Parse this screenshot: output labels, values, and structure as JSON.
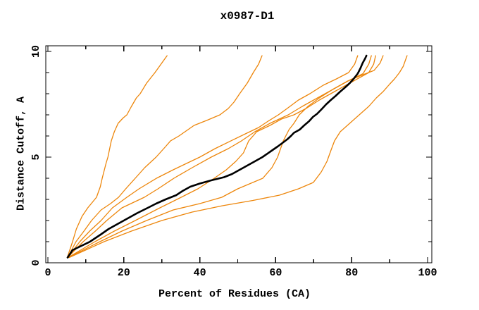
{
  "title": "x0987-D1",
  "chart_data": {
    "type": "line",
    "title": "x0987-D1",
    "xlabel": "Percent of Residues (CA)",
    "ylabel": "Distance Cutoff, A",
    "xlim": [
      0,
      101
    ],
    "ylim": [
      0,
      10.3
    ],
    "grid": false,
    "legend": "none",
    "x_major_ticks": [
      0,
      20,
      40,
      60,
      80,
      100
    ],
    "x_major_tick_labels": [
      "0",
      "20",
      "40",
      "60",
      "80",
      "100"
    ],
    "x_minor_ticks": [
      10,
      30,
      50,
      70,
      90
    ],
    "y_major_ticks": [
      0,
      5,
      10
    ],
    "y_major_tick_labels": [
      "0",
      "5",
      "10"
    ],
    "y_minor_ticks": [
      1,
      2,
      3,
      4,
      6,
      7,
      8,
      9
    ],
    "colors": {
      "highlight": "#000000",
      "model": "#ED860B",
      "frame": "#000000"
    },
    "series": [
      {
        "name": "orange-model-1",
        "color": "#ED860B",
        "width": 1.3,
        "points": [
          [
            5.1,
            0.25
          ],
          [
            6.5,
            1
          ],
          [
            7.5,
            1.6
          ],
          [
            9,
            2.2
          ],
          [
            10.5,
            2.6
          ],
          [
            12.8,
            3.1
          ],
          [
            13.8,
            3.6
          ],
          [
            14.3,
            4
          ],
          [
            15.3,
            4.7
          ],
          [
            15.8,
            5
          ],
          [
            16.7,
            5.77
          ],
          [
            17.5,
            6.2
          ],
          [
            18.5,
            6.6
          ],
          [
            19.8,
            6.85
          ],
          [
            20.8,
            7
          ],
          [
            22,
            7.4
          ],
          [
            23.3,
            7.8
          ],
          [
            24.3,
            8
          ],
          [
            26,
            8.5
          ],
          [
            28.2,
            9
          ],
          [
            29.8,
            9.4
          ],
          [
            31.4,
            9.8
          ]
        ]
      },
      {
        "name": "orange-model-2",
        "color": "#ED860B",
        "width": 1.3,
        "points": [
          [
            5.2,
            0.25
          ],
          [
            7.4,
            1
          ],
          [
            9.5,
            1.5
          ],
          [
            11.5,
            2
          ],
          [
            14,
            2.5
          ],
          [
            16.5,
            2.8
          ],
          [
            18.6,
            3.1
          ],
          [
            20.5,
            3.5
          ],
          [
            23,
            4
          ],
          [
            25.5,
            4.5
          ],
          [
            28.5,
            5
          ],
          [
            31,
            5.5
          ],
          [
            32.3,
            5.77
          ],
          [
            34.5,
            6
          ],
          [
            38.5,
            6.5
          ],
          [
            42,
            6.75
          ],
          [
            45.3,
            7
          ],
          [
            47.5,
            7.3
          ],
          [
            49,
            7.6
          ],
          [
            50.5,
            8
          ],
          [
            52.5,
            8.5
          ],
          [
            54.1,
            9
          ],
          [
            55.5,
            9.4
          ],
          [
            56.4,
            9.8
          ]
        ]
      },
      {
        "name": "orange-model-3",
        "color": "#ED860B",
        "width": 1.3,
        "points": [
          [
            5.2,
            0.25
          ],
          [
            8.4,
            1
          ],
          [
            11,
            1.5
          ],
          [
            14,
            2
          ],
          [
            17,
            2.6
          ],
          [
            20.8,
            3.1
          ],
          [
            24,
            3.5
          ],
          [
            28.6,
            4
          ],
          [
            33,
            4.4
          ],
          [
            36.5,
            4.7
          ],
          [
            40,
            5
          ],
          [
            44,
            5.4
          ],
          [
            48.2,
            5.77
          ],
          [
            52,
            6.1
          ],
          [
            55.5,
            6.4
          ],
          [
            58,
            6.7
          ],
          [
            60.7,
            7
          ],
          [
            63,
            7.3
          ],
          [
            66,
            7.7
          ],
          [
            69,
            8
          ],
          [
            72.5,
            8.4
          ],
          [
            76,
            8.7
          ],
          [
            79.2,
            9
          ],
          [
            80.8,
            9.4
          ],
          [
            81.6,
            9.8
          ]
        ]
      },
      {
        "name": "orange-model-4",
        "color": "#ED860B",
        "width": 1.3,
        "points": [
          [
            5.2,
            0.25
          ],
          [
            9.3,
            1
          ],
          [
            12.5,
            1.5
          ],
          [
            15.5,
            2
          ],
          [
            19.5,
            2.6
          ],
          [
            25.4,
            3.1
          ],
          [
            29,
            3.5
          ],
          [
            33.2,
            4
          ],
          [
            38,
            4.5
          ],
          [
            43,
            5
          ],
          [
            47.5,
            5.4
          ],
          [
            51,
            5.77
          ],
          [
            54.5,
            6.2
          ],
          [
            58.5,
            6.6
          ],
          [
            63.3,
            7
          ],
          [
            67,
            7.4
          ],
          [
            71,
            7.8
          ],
          [
            75,
            8.2
          ],
          [
            79,
            8.6
          ],
          [
            83,
            8.95
          ],
          [
            84.5,
            9.4
          ],
          [
            85.2,
            9.8
          ]
        ]
      },
      {
        "name": "orange-model-5",
        "color": "#ED860B",
        "width": 1.3,
        "points": [
          [
            5.3,
            0.25
          ],
          [
            12.4,
            1
          ],
          [
            17.5,
            1.5
          ],
          [
            23,
            2
          ],
          [
            29.5,
            2.6
          ],
          [
            35.1,
            3.1
          ],
          [
            39.5,
            3.5
          ],
          [
            43.8,
            4
          ],
          [
            47,
            4.4
          ],
          [
            49.5,
            4.8
          ],
          [
            51.5,
            5.2
          ],
          [
            52.9,
            5.77
          ],
          [
            55,
            6.2
          ],
          [
            58.5,
            6.5
          ],
          [
            61.5,
            6.8
          ],
          [
            64.8,
            7
          ],
          [
            68,
            7.3
          ],
          [
            71.5,
            7.7
          ],
          [
            75.5,
            8.1
          ],
          [
            79.5,
            8.5
          ],
          [
            82.5,
            8.8
          ],
          [
            84.5,
            9
          ],
          [
            85.8,
            9.4
          ],
          [
            86.3,
            9.8
          ]
        ]
      },
      {
        "name": "orange-model-6",
        "color": "#ED860B",
        "width": 1.3,
        "points": [
          [
            5.4,
            0.25
          ],
          [
            13.7,
            1
          ],
          [
            19.5,
            1.5
          ],
          [
            26,
            2
          ],
          [
            33,
            2.5
          ],
          [
            40,
            2.8
          ],
          [
            45.8,
            3.1
          ],
          [
            50,
            3.5
          ],
          [
            56.6,
            4
          ],
          [
            59,
            4.5
          ],
          [
            60.5,
            5
          ],
          [
            62,
            5.77
          ],
          [
            63.5,
            6.3
          ],
          [
            64.8,
            6.6
          ],
          [
            66.2,
            7
          ],
          [
            68.5,
            7.4
          ],
          [
            71.5,
            7.8
          ],
          [
            75,
            8.2
          ],
          [
            79,
            8.6
          ],
          [
            83,
            8.9
          ],
          [
            85.9,
            9.1
          ],
          [
            87.5,
            9.45
          ],
          [
            88.3,
            9.8
          ]
        ]
      },
      {
        "name": "orange-model-7",
        "color": "#ED860B",
        "width": 1.3,
        "points": [
          [
            5.6,
            0.25
          ],
          [
            14.8,
            1
          ],
          [
            22,
            1.5
          ],
          [
            30,
            2
          ],
          [
            38,
            2.4
          ],
          [
            46,
            2.7
          ],
          [
            54,
            2.95
          ],
          [
            61,
            3.2
          ],
          [
            66,
            3.5
          ],
          [
            69.9,
            3.8
          ],
          [
            72,
            4.3
          ],
          [
            73.5,
            4.8
          ],
          [
            74.5,
            5.3
          ],
          [
            75.5,
            5.77
          ],
          [
            77,
            6.2
          ],
          [
            79.5,
            6.6
          ],
          [
            82,
            7
          ],
          [
            84.5,
            7.4
          ],
          [
            86.5,
            7.8
          ],
          [
            88.3,
            8.1
          ],
          [
            90,
            8.45
          ],
          [
            91.3,
            8.7
          ],
          [
            92.6,
            9
          ],
          [
            93.6,
            9.3
          ],
          [
            94.2,
            9.6
          ],
          [
            94.6,
            9.8
          ]
        ]
      },
      {
        "name": "highlighted-model",
        "color": "#000000",
        "width": 2.6,
        "points": [
          [
            5.2,
            0.25
          ],
          [
            6.5,
            0.6
          ],
          [
            11.1,
            1
          ],
          [
            14,
            1.35
          ],
          [
            16,
            1.6
          ],
          [
            18.5,
            1.85
          ],
          [
            21,
            2.1
          ],
          [
            23.5,
            2.35
          ],
          [
            26.3,
            2.6
          ],
          [
            28.5,
            2.8
          ],
          [
            31,
            3
          ],
          [
            33.8,
            3.2
          ],
          [
            35.5,
            3.4
          ],
          [
            37.5,
            3.6
          ],
          [
            40,
            3.75
          ],
          [
            43,
            3.9
          ],
          [
            46.4,
            4.05
          ],
          [
            48.5,
            4.2
          ],
          [
            50.5,
            4.4
          ],
          [
            52.5,
            4.6
          ],
          [
            54.5,
            4.8
          ],
          [
            56.5,
            5
          ],
          [
            58.5,
            5.25
          ],
          [
            60.5,
            5.5
          ],
          [
            62,
            5.7
          ],
          [
            63.1,
            5.85
          ],
          [
            64,
            6
          ],
          [
            64.8,
            6.15
          ],
          [
            66.3,
            6.3
          ],
          [
            67.5,
            6.5
          ],
          [
            68.8,
            6.7
          ],
          [
            69.8,
            6.9
          ],
          [
            70.9,
            7.05
          ],
          [
            72,
            7.25
          ],
          [
            73.3,
            7.5
          ],
          [
            74.5,
            7.7
          ],
          [
            75.8,
            7.9
          ],
          [
            77,
            8.1
          ],
          [
            78.3,
            8.3
          ],
          [
            79.5,
            8.5
          ],
          [
            80.5,
            8.7
          ],
          [
            81.6,
            8.95
          ],
          [
            82.3,
            9.2
          ],
          [
            82.9,
            9.45
          ],
          [
            83.5,
            9.65
          ],
          [
            83.9,
            9.8
          ]
        ]
      }
    ]
  }
}
